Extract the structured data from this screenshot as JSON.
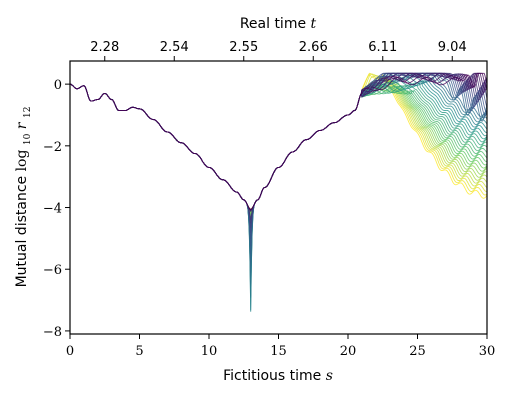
{
  "chart_data": {
    "type": "line",
    "title": "",
    "xlabel": "Fictitious time",
    "xlabel_var": "s",
    "ylabel": "Mutual distance",
    "ylabel_math": "log",
    "ylabel_sub": "10",
    "ylabel_var": "r",
    "ylabel_var_sub": "12",
    "x2label": "Real time",
    "x2label_var": "t",
    "xlim": [
      0,
      30
    ],
    "ylim": [
      -8.1,
      0.75
    ],
    "x_ticks": [
      0,
      5,
      10,
      15,
      20,
      25,
      30
    ],
    "x_tick_labels": [
      "0",
      "5",
      "10",
      "15",
      "20",
      "25",
      "30"
    ],
    "y_ticks": [
      0,
      -2,
      -4,
      -6,
      -8
    ],
    "y_tick_labels": [
      "0",
      "−2",
      "−4",
      "−6",
      "−8"
    ],
    "x2_ticks": [
      2.5,
      7.5,
      12.5,
      17.5,
      22.5,
      27.5
    ],
    "x2_tick_labels": [
      "2.28",
      "2.54",
      "2.55",
      "2.66",
      "6.11",
      "9.04"
    ],
    "grid": false,
    "legend": "none",
    "colormap": "viridis",
    "series_count": 40,
    "main_curve": {
      "x": [
        0,
        0.5,
        1.0,
        1.5,
        2.0,
        2.5,
        3.0,
        3.5,
        4.0,
        4.5,
        5.0,
        6.0,
        7.0,
        8.0,
        9.0,
        10.0,
        11.0,
        12.0,
        12.5,
        13.0,
        13.5,
        14.0,
        15.0,
        16.0,
        17.0,
        18.0,
        19.0,
        20.0,
        20.5,
        21.0
      ],
      "y": [
        0,
        -0.15,
        -0.05,
        -0.55,
        -0.5,
        -0.3,
        -0.5,
        -0.85,
        -0.85,
        -0.75,
        -0.8,
        -1.15,
        -1.55,
        -1.9,
        -2.25,
        -2.7,
        -3.1,
        -3.5,
        -3.75,
        -4.05,
        -3.75,
        -3.35,
        -2.7,
        -2.2,
        -1.8,
        -1.5,
        -1.25,
        -1.0,
        -0.85,
        -0.3
      ]
    },
    "min_spike": {
      "x": 13.0,
      "y_top": -4.05,
      "y_bottom": -7.6
    },
    "divergence_start_x": 21.0,
    "divergence_end_y_range": [
      -3.6,
      0.3
    ]
  },
  "colors": {
    "viridis_start": "#440154",
    "viridis_mid": "#21918c",
    "viridis_end": "#fde725",
    "axis": "#000000"
  }
}
